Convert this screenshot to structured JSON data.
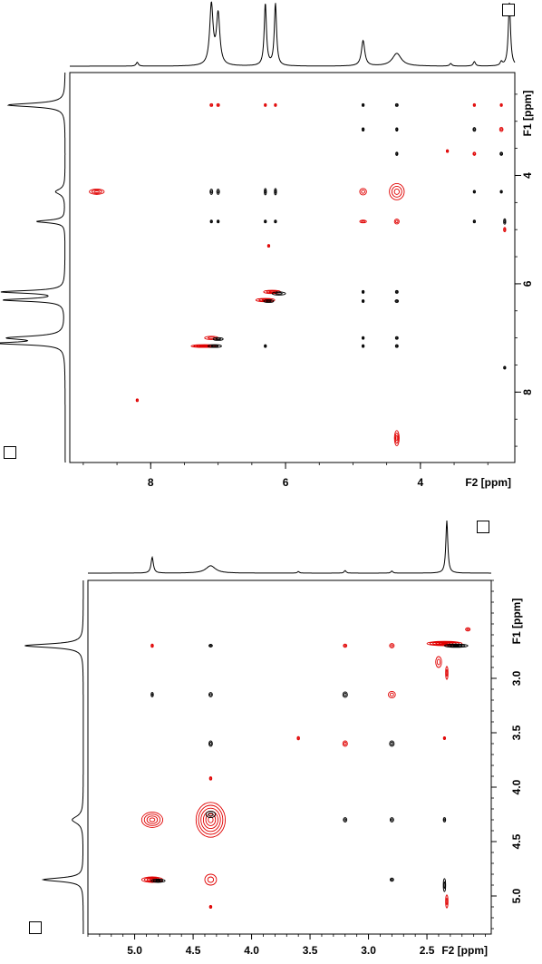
{
  "chart_data": [
    {
      "type": "2d-nmr-contour",
      "x_axis": {
        "label": "F2 [ppm]",
        "range": [
          9.2,
          2.6
        ],
        "ticks": [
          8,
          6,
          4
        ]
      },
      "y_axis": {
        "label": "F1 [ppm]",
        "range": [
          2.1,
          9.3
        ],
        "ticks": [
          4,
          6,
          8
        ]
      },
      "colors": {
        "positive": "#000000",
        "negative": "#e00000"
      },
      "projection_top": {
        "peaks": [
          {
            "ppm": 8.2,
            "height": 0.06,
            "width": 0.02
          },
          {
            "ppm": 7.1,
            "height": 0.95,
            "width": 0.03
          },
          {
            "ppm": 7.0,
            "height": 0.8,
            "width": 0.03
          },
          {
            "ppm": 6.3,
            "height": 0.98,
            "width": 0.02
          },
          {
            "ppm": 6.15,
            "height": 0.98,
            "width": 0.02
          },
          {
            "ppm": 4.85,
            "height": 0.4,
            "width": 0.03
          },
          {
            "ppm": 4.35,
            "height": 0.2,
            "width": 0.08
          },
          {
            "ppm": 3.55,
            "height": 0.04,
            "width": 0.02
          },
          {
            "ppm": 3.2,
            "height": 0.07,
            "width": 0.02
          },
          {
            "ppm": 2.8,
            "height": 0.06,
            "width": 0.02
          },
          {
            "ppm": 2.68,
            "height": 1.0,
            "width": 0.02
          }
        ]
      },
      "projection_left": {
        "peaks": [
          {
            "ppm": 2.7,
            "height": 0.9,
            "width": 0.04
          },
          {
            "ppm": 4.3,
            "height": 0.15,
            "width": 0.06
          },
          {
            "ppm": 4.85,
            "height": 0.45,
            "width": 0.03
          },
          {
            "ppm": 6.15,
            "height": 0.98,
            "width": 0.03
          },
          {
            "ppm": 6.3,
            "height": 0.95,
            "width": 0.03
          },
          {
            "ppm": 7.0,
            "height": 0.85,
            "width": 0.04
          },
          {
            "ppm": 7.1,
            "height": 0.98,
            "width": 0.03
          }
        ]
      },
      "cross_peaks": [
        {
          "x": 7.1,
          "y": 2.7,
          "sign": "neg",
          "w": 0.04,
          "h": 0.05
        },
        {
          "x": 7.0,
          "y": 2.7,
          "sign": "neg",
          "w": 0.04,
          "h": 0.05
        },
        {
          "x": 6.3,
          "y": 2.7,
          "sign": "neg",
          "w": 0.03,
          "h": 0.05
        },
        {
          "x": 6.15,
          "y": 2.7,
          "sign": "neg",
          "w": 0.03,
          "h": 0.05
        },
        {
          "x": 4.85,
          "y": 2.7,
          "sign": "pos",
          "w": 0.03,
          "h": 0.05
        },
        {
          "x": 4.35,
          "y": 2.7,
          "sign": "pos",
          "w": 0.04,
          "h": 0.05
        },
        {
          "x": 3.2,
          "y": 2.7,
          "sign": "neg",
          "w": 0.03,
          "h": 0.05
        },
        {
          "x": 2.8,
          "y": 2.7,
          "sign": "neg",
          "w": 0.03,
          "h": 0.05
        },
        {
          "x": 4.85,
          "y": 3.15,
          "sign": "pos",
          "w": 0.02,
          "h": 0.06
        },
        {
          "x": 4.35,
          "y": 3.15,
          "sign": "pos",
          "w": 0.03,
          "h": 0.06
        },
        {
          "x": 3.2,
          "y": 3.15,
          "sign": "pos",
          "w": 0.04,
          "h": 0.07
        },
        {
          "x": 2.8,
          "y": 3.15,
          "sign": "neg",
          "w": 0.05,
          "h": 0.08
        },
        {
          "x": 4.35,
          "y": 3.6,
          "sign": "pos",
          "w": 0.03,
          "h": 0.06
        },
        {
          "x": 3.2,
          "y": 3.6,
          "sign": "neg",
          "w": 0.04,
          "h": 0.06
        },
        {
          "x": 2.8,
          "y": 3.6,
          "sign": "pos",
          "w": 0.04,
          "h": 0.06
        },
        {
          "x": 3.6,
          "y": 3.55,
          "sign": "neg",
          "w": 0.02,
          "h": 0.04
        },
        {
          "x": 8.8,
          "y": 4.3,
          "sign": "neg",
          "w": 0.22,
          "h": 0.1
        },
        {
          "x": 7.1,
          "y": 4.3,
          "sign": "pos",
          "w": 0.04,
          "h": 0.1
        },
        {
          "x": 7.0,
          "y": 4.3,
          "sign": "pos",
          "w": 0.04,
          "h": 0.1
        },
        {
          "x": 6.3,
          "y": 4.3,
          "sign": "pos",
          "w": 0.03,
          "h": 0.12
        },
        {
          "x": 6.15,
          "y": 4.3,
          "sign": "pos",
          "w": 0.03,
          "h": 0.12
        },
        {
          "x": 4.35,
          "y": 4.3,
          "sign": "neg",
          "w": 0.22,
          "h": 0.3
        },
        {
          "x": 4.85,
          "y": 4.3,
          "sign": "neg",
          "w": 0.1,
          "h": 0.12
        },
        {
          "x": 3.2,
          "y": 4.3,
          "sign": "pos",
          "w": 0.03,
          "h": 0.05
        },
        {
          "x": 2.8,
          "y": 4.3,
          "sign": "pos",
          "w": 0.03,
          "h": 0.05
        },
        {
          "x": 7.1,
          "y": 4.85,
          "sign": "pos",
          "w": 0.03,
          "h": 0.04
        },
        {
          "x": 7.0,
          "y": 4.85,
          "sign": "pos",
          "w": 0.03,
          "h": 0.04
        },
        {
          "x": 6.3,
          "y": 4.85,
          "sign": "pos",
          "w": 0.02,
          "h": 0.04
        },
        {
          "x": 6.15,
          "y": 4.85,
          "sign": "pos",
          "w": 0.02,
          "h": 0.04
        },
        {
          "x": 4.85,
          "y": 4.85,
          "sign": "neg",
          "w": 0.1,
          "h": 0.05
        },
        {
          "x": 4.35,
          "y": 4.85,
          "sign": "neg",
          "w": 0.07,
          "h": 0.09
        },
        {
          "x": 3.2,
          "y": 4.85,
          "sign": "pos",
          "w": 0.02,
          "h": 0.04
        },
        {
          "x": 2.75,
          "y": 4.85,
          "sign": "pos",
          "w": 0.03,
          "h": 0.1
        },
        {
          "x": 2.75,
          "y": 5.0,
          "sign": "neg",
          "w": 0.03,
          "h": 0.08
        },
        {
          "x": 6.25,
          "y": 5.3,
          "sign": "neg",
          "w": 0.02,
          "h": 0.04
        },
        {
          "x": 6.2,
          "y": 6.15,
          "sign": "neg",
          "w": 0.25,
          "h": 0.06
        },
        {
          "x": 6.1,
          "y": 6.18,
          "sign": "pos",
          "w": 0.2,
          "h": 0.06
        },
        {
          "x": 6.3,
          "y": 6.3,
          "sign": "neg",
          "w": 0.28,
          "h": 0.06
        },
        {
          "x": 6.25,
          "y": 6.32,
          "sign": "pos",
          "w": 0.15,
          "h": 0.05
        },
        {
          "x": 4.85,
          "y": 6.15,
          "sign": "pos",
          "w": 0.02,
          "h": 0.04
        },
        {
          "x": 4.35,
          "y": 6.15,
          "sign": "pos",
          "w": 0.04,
          "h": 0.04
        },
        {
          "x": 4.85,
          "y": 6.32,
          "sign": "pos",
          "w": 0.02,
          "h": 0.04
        },
        {
          "x": 4.35,
          "y": 6.32,
          "sign": "pos",
          "w": 0.05,
          "h": 0.04
        },
        {
          "x": 7.1,
          "y": 7.0,
          "sign": "neg",
          "w": 0.2,
          "h": 0.06
        },
        {
          "x": 7.0,
          "y": 7.02,
          "sign": "pos",
          "w": 0.15,
          "h": 0.05
        },
        {
          "x": 7.2,
          "y": 7.15,
          "sign": "neg",
          "w": 0.4,
          "h": 0.05
        },
        {
          "x": 7.05,
          "y": 7.15,
          "sign": "pos",
          "w": 0.2,
          "h": 0.05
        },
        {
          "x": 6.3,
          "y": 7.15,
          "sign": "pos",
          "w": 0.02,
          "h": 0.04
        },
        {
          "x": 4.85,
          "y": 7.0,
          "sign": "pos",
          "w": 0.03,
          "h": 0.04
        },
        {
          "x": 4.85,
          "y": 7.15,
          "sign": "pos",
          "w": 0.03,
          "h": 0.04
        },
        {
          "x": 4.35,
          "y": 7.0,
          "sign": "pos",
          "w": 0.04,
          "h": 0.04
        },
        {
          "x": 4.35,
          "y": 7.15,
          "sign": "pos",
          "w": 0.04,
          "h": 0.04
        },
        {
          "x": 2.75,
          "y": 7.55,
          "sign": "pos",
          "w": 0.02,
          "h": 0.04
        },
        {
          "x": 8.2,
          "y": 8.15,
          "sign": "neg",
          "w": 0.02,
          "h": 0.04
        },
        {
          "x": 4.35,
          "y": 8.85,
          "sign": "neg",
          "w": 0.07,
          "h": 0.28
        }
      ]
    },
    {
      "type": "2d-nmr-contour",
      "x_axis": {
        "label": "F2 [ppm]",
        "range": [
          5.4,
          1.95
        ],
        "ticks": [
          "5.0",
          "4.5",
          "4.0",
          "3.5",
          "3.0",
          "2.5"
        ],
        "tick_values": [
          5.0,
          4.5,
          4.0,
          3.5,
          3.0,
          2.5
        ]
      },
      "y_axis": {
        "label": "F1 [ppm]",
        "range": [
          2.1,
          5.35
        ],
        "ticks": [
          "3.0",
          "3.5",
          "4.0",
          "4.5",
          "5.0"
        ],
        "tick_values": [
          3.0,
          3.5,
          4.0,
          4.5,
          5.0
        ]
      },
      "colors": {
        "positive": "#000000",
        "negative": "#e00000"
      },
      "projection_top": {
        "peaks": [
          {
            "ppm": 4.85,
            "height": 0.3,
            "width": 0.012
          },
          {
            "ppm": 4.35,
            "height": 0.14,
            "width": 0.05
          },
          {
            "ppm": 3.6,
            "height": 0.03,
            "width": 0.01
          },
          {
            "ppm": 3.2,
            "height": 0.05,
            "width": 0.01
          },
          {
            "ppm": 2.8,
            "height": 0.04,
            "width": 0.01
          },
          {
            "ppm": 2.33,
            "height": 1.0,
            "width": 0.01
          }
        ]
      },
      "projection_left": {
        "peaks": [
          {
            "ppm": 2.7,
            "height": 0.95,
            "width": 0.02
          },
          {
            "ppm": 4.3,
            "height": 0.18,
            "width": 0.04
          },
          {
            "ppm": 4.85,
            "height": 0.65,
            "width": 0.02
          }
        ]
      },
      "cross_peaks": [
        {
          "x": 4.85,
          "y": 2.7,
          "sign": "neg",
          "w": 0.02,
          "h": 0.03
        },
        {
          "x": 4.35,
          "y": 2.7,
          "sign": "pos",
          "w": 0.03,
          "h": 0.02
        },
        {
          "x": 3.2,
          "y": 2.7,
          "sign": "neg",
          "w": 0.03,
          "h": 0.03
        },
        {
          "x": 2.8,
          "y": 2.7,
          "sign": "neg",
          "w": 0.04,
          "h": 0.04
        },
        {
          "x": 2.35,
          "y": 2.68,
          "sign": "neg",
          "w": 0.3,
          "h": 0.04
        },
        {
          "x": 2.25,
          "y": 2.7,
          "sign": "pos",
          "w": 0.2,
          "h": 0.03
        },
        {
          "x": 2.4,
          "y": 2.85,
          "sign": "neg",
          "w": 0.05,
          "h": 0.1
        },
        {
          "x": 2.33,
          "y": 2.95,
          "sign": "neg",
          "w": 0.02,
          "h": 0.12
        },
        {
          "x": 2.15,
          "y": 2.55,
          "sign": "neg",
          "w": 0.04,
          "h": 0.03
        },
        {
          "x": 4.85,
          "y": 3.15,
          "sign": "pos",
          "w": 0.02,
          "h": 0.04
        },
        {
          "x": 4.35,
          "y": 3.15,
          "sign": "pos",
          "w": 0.03,
          "h": 0.04
        },
        {
          "x": 3.2,
          "y": 3.15,
          "sign": "pos",
          "w": 0.04,
          "h": 0.05
        },
        {
          "x": 2.8,
          "y": 3.15,
          "sign": "neg",
          "w": 0.06,
          "h": 0.06
        },
        {
          "x": 4.35,
          "y": 3.6,
          "sign": "pos",
          "w": 0.03,
          "h": 0.05
        },
        {
          "x": 3.2,
          "y": 3.6,
          "sign": "neg",
          "w": 0.04,
          "h": 0.05
        },
        {
          "x": 2.8,
          "y": 3.6,
          "sign": "pos",
          "w": 0.04,
          "h": 0.05
        },
        {
          "x": 2.35,
          "y": 3.55,
          "sign": "neg",
          "w": 0.01,
          "h": 0.02
        },
        {
          "x": 3.6,
          "y": 3.55,
          "sign": "neg",
          "w": 0.02,
          "h": 0.03
        },
        {
          "x": 4.35,
          "y": 3.92,
          "sign": "neg",
          "w": 0.02,
          "h": 0.03
        },
        {
          "x": 4.35,
          "y": 4.3,
          "sign": "neg",
          "w": 0.25,
          "h": 0.32
        },
        {
          "x": 4.85,
          "y": 4.3,
          "sign": "neg",
          "w": 0.18,
          "h": 0.14
        },
        {
          "x": 4.35,
          "y": 4.25,
          "sign": "pos",
          "w": 0.08,
          "h": 0.06
        },
        {
          "x": 3.2,
          "y": 4.3,
          "sign": "pos",
          "w": 0.03,
          "h": 0.04
        },
        {
          "x": 2.8,
          "y": 4.3,
          "sign": "pos",
          "w": 0.03,
          "h": 0.04
        },
        {
          "x": 2.35,
          "y": 4.3,
          "sign": "pos",
          "w": 0.02,
          "h": 0.04
        },
        {
          "x": 4.85,
          "y": 4.85,
          "sign": "neg",
          "w": 0.18,
          "h": 0.05
        },
        {
          "x": 4.8,
          "y": 4.86,
          "sign": "pos",
          "w": 0.12,
          "h": 0.03
        },
        {
          "x": 4.35,
          "y": 4.85,
          "sign": "neg",
          "w": 0.1,
          "h": 0.1
        },
        {
          "x": 2.8,
          "y": 4.85,
          "sign": "pos",
          "w": 0.03,
          "h": 0.03
        },
        {
          "x": 2.35,
          "y": 4.9,
          "sign": "pos",
          "w": 0.02,
          "h": 0.12
        },
        {
          "x": 2.33,
          "y": 5.05,
          "sign": "neg",
          "w": 0.02,
          "h": 0.12
        },
        {
          "x": 4.35,
          "y": 5.1,
          "sign": "neg",
          "w": 0.02,
          "h": 0.02
        }
      ]
    }
  ]
}
